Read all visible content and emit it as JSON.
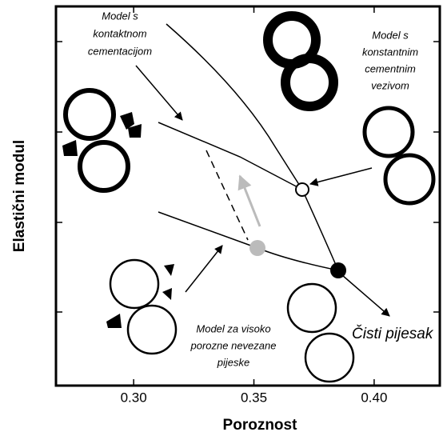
{
  "x_axis": {
    "label": "Poroznost",
    "xlim": [
      0.2677,
      0.4273
    ],
    "ticks": [
      {
        "value": 0.3,
        "label": "0.30"
      },
      0.35,
      {
        "value": 0.4,
        "label": "0.40"
      }
    ]
  },
  "y_axis": {
    "label": "Elastični modul"
  },
  "annotations": {
    "contact_cement": [
      "Model s",
      "kontaktnom",
      "cementacijom"
    ],
    "constant_cement": [
      "Model s",
      "konstantnim",
      "cementnim",
      "vezivom"
    ],
    "unconsolidated": [
      "Model za visoko",
      "porozne nevezane",
      "pijeske"
    ],
    "clean_sand": "Čisti pijesak"
  }
}
